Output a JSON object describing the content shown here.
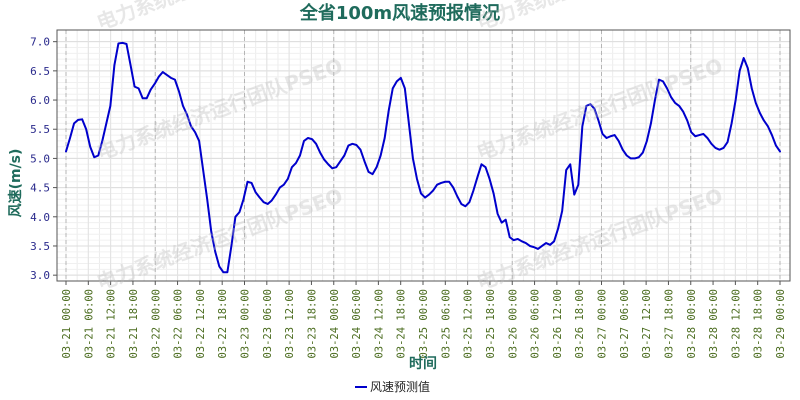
{
  "watermark": "电力系统经济运行团队PSEO",
  "chart_data": {
    "type": "line",
    "title": "全省100m风速预报情况",
    "xlabel": "时间",
    "ylabel": "风速(m/s)",
    "ylim": [
      2.9,
      7.2
    ],
    "yticks": [
      "3.0",
      "3.5",
      "4.0",
      "4.5",
      "5.0",
      "5.5",
      "6.0",
      "6.5",
      "7.0"
    ],
    "xticks": [
      "03-21 00:00",
      "03-21 06:00",
      "03-21 12:00",
      "03-21 18:00",
      "03-22 00:00",
      "03-22 06:00",
      "03-22 12:00",
      "03-22 18:00",
      "03-23 00:00",
      "03-23 06:00",
      "03-23 12:00",
      "03-23 18:00",
      "03-24 00:00",
      "03-24 06:00",
      "03-24 12:00",
      "03-24 18:00",
      "03-25 00:00",
      "03-25 06:00",
      "03-25 12:00",
      "03-25 18:00",
      "03-26 00:00",
      "03-26 06:00",
      "03-26 12:00",
      "03-26 18:00",
      "03-27 00:00",
      "03-27 06:00",
      "03-27 12:00",
      "03-27 18:00",
      "03-28 00:00",
      "03-28 06:00",
      "03-28 12:00",
      "03-28 18:00",
      "03-29 00:00"
    ],
    "major_ticks_every": 4,
    "grid": true,
    "legend_position": "bottom-center",
    "color": "#0000cc",
    "series": [
      {
        "name": "风速预测值",
        "values": [
          5.12,
          5.35,
          5.6,
          5.66,
          5.67,
          5.5,
          5.2,
          5.02,
          5.05,
          5.3,
          5.6,
          5.9,
          6.6,
          6.97,
          6.98,
          6.96,
          6.6,
          6.23,
          6.2,
          6.03,
          6.03,
          6.18,
          6.28,
          6.4,
          6.48,
          6.43,
          6.38,
          6.35,
          6.15,
          5.9,
          5.75,
          5.55,
          5.45,
          5.3,
          4.8,
          4.3,
          3.75,
          3.4,
          3.15,
          3.05,
          3.05,
          3.5,
          4.0,
          4.08,
          4.3,
          4.6,
          4.58,
          4.42,
          4.33,
          4.25,
          4.22,
          4.28,
          4.38,
          4.5,
          4.55,
          4.65,
          4.85,
          4.92,
          5.05,
          5.3,
          5.35,
          5.33,
          5.25,
          5.1,
          4.98,
          4.9,
          4.83,
          4.85,
          4.95,
          5.05,
          5.22,
          5.25,
          5.23,
          5.15,
          4.95,
          4.77,
          4.73,
          4.85,
          5.05,
          5.35,
          5.82,
          6.2,
          6.32,
          6.38,
          6.2,
          5.6,
          5.0,
          4.65,
          4.4,
          4.33,
          4.38,
          4.45,
          4.55,
          4.58,
          4.6,
          4.6,
          4.5,
          4.35,
          4.22,
          4.18,
          4.25,
          4.45,
          4.68,
          4.9,
          4.85,
          4.65,
          4.4,
          4.05,
          3.9,
          3.95,
          3.65,
          3.6,
          3.62,
          3.58,
          3.55,
          3.5,
          3.48,
          3.45,
          3.5,
          3.55,
          3.52,
          3.58,
          3.8,
          4.1,
          4.8,
          4.9,
          4.38,
          4.55,
          5.55,
          5.9,
          5.93,
          5.85,
          5.65,
          5.42,
          5.35,
          5.38,
          5.4,
          5.3,
          5.15,
          5.05,
          5.0,
          5.0,
          5.02,
          5.1,
          5.3,
          5.6,
          6.0,
          6.35,
          6.32,
          6.2,
          6.05,
          5.95,
          5.9,
          5.8,
          5.65,
          5.45,
          5.38,
          5.4,
          5.42,
          5.35,
          5.25,
          5.18,
          5.15,
          5.18,
          5.28,
          5.6,
          6.0,
          6.5,
          6.72,
          6.55,
          6.2,
          5.95,
          5.78,
          5.65,
          5.55,
          5.4,
          5.22,
          5.12
        ]
      }
    ]
  }
}
